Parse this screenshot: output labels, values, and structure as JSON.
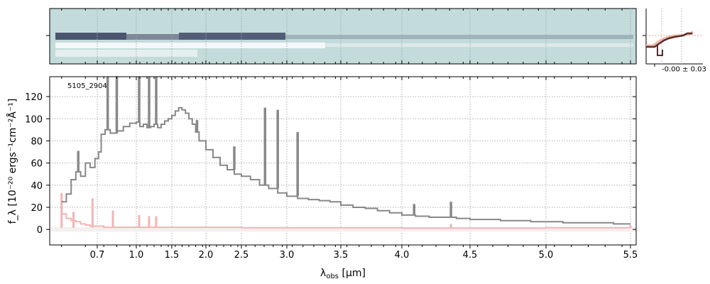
{
  "chart_data": {
    "type": "line",
    "object_label": "5105_2904",
    "xlabel_main": "λ",
    "xlabel_sub": "obs",
    "xlabel_unit": " [μm]",
    "ylabel_main": "f",
    "ylabel_sub": "λ",
    "ylabel_unit": "[10⁻²⁰ ergs⁻¹cm⁻²Å⁻¹]",
    "ylabel_text": "f_λ [10⁻²⁰ ergs⁻¹cm⁻²Å⁻¹]",
    "x_ticks": [
      0.7,
      1.0,
      1.5,
      2.0,
      2.5,
      3.0,
      3.5,
      4.0,
      4.5,
      5.0,
      5.5
    ],
    "x_tick_labels": [
      "0.7",
      "1.0",
      "1.5",
      "2.0",
      "2.5",
      "3.0",
      "3.5",
      "4.0",
      "4.5",
      "5.0",
      "5.5"
    ],
    "y_ticks": [
      0,
      20,
      40,
      60,
      80,
      100,
      120
    ],
    "y_tick_labels": [
      "0",
      "20",
      "40",
      "60",
      "80",
      "100",
      "120"
    ],
    "ylim": [
      -14,
      138
    ],
    "grid": true,
    "inset_label": "-0.00 ± 0.03",
    "series": [
      {
        "role": "flux",
        "color": "#888888",
        "x": [
          0.55,
          0.57,
          0.59,
          0.61,
          0.63,
          0.65,
          0.67,
          0.69,
          0.71,
          0.73,
          0.76,
          0.8,
          0.85,
          0.9,
          0.95,
          1.0,
          1.05,
          1.1,
          1.15,
          1.2,
          1.25,
          1.3,
          1.35,
          1.4,
          1.45,
          1.5,
          1.55,
          1.6,
          1.65,
          1.7,
          1.75,
          1.8,
          1.85,
          1.9,
          2.0,
          2.1,
          2.2,
          2.3,
          2.4,
          2.5,
          2.6,
          2.7,
          2.8,
          2.9,
          3.0,
          3.1,
          3.2,
          3.3,
          3.4,
          3.5,
          3.6,
          3.7,
          3.8,
          3.9,
          4.0,
          4.1,
          4.2,
          4.3,
          4.4,
          4.5,
          4.6,
          4.7,
          4.8,
          4.9,
          5.0,
          5.1,
          5.2,
          5.3,
          5.4,
          5.5
        ],
        "y": [
          25,
          32,
          45,
          52,
          48,
          60,
          56,
          64,
          70,
          86,
          90,
          87,
          89,
          93,
          96,
          97,
          93,
          95,
          92,
          93,
          95,
          92,
          95,
          98,
          100,
          103,
          107,
          110,
          108,
          105,
          100,
          95,
          88,
          80,
          72,
          65,
          58,
          54,
          50,
          48,
          45,
          40,
          37,
          33,
          30,
          28,
          27,
          26,
          25,
          22,
          20,
          19,
          17,
          15,
          13,
          12,
          11,
          11,
          10,
          9,
          9,
          8,
          8,
          7,
          7,
          6,
          6,
          6,
          5,
          5
        ]
      },
      {
        "role": "uncertainty",
        "color": "#f5b3b3",
        "x": [
          0.55,
          0.57,
          0.59,
          0.61,
          0.63,
          0.65,
          0.67,
          0.7,
          0.75,
          0.8,
          0.9,
          1.0,
          1.2,
          1.4,
          1.6,
          1.8,
          2.0,
          2.5,
          3.0,
          3.5,
          4.0,
          4.5,
          5.0,
          5.5
        ],
        "y": [
          14,
          10,
          8,
          7,
          5,
          4,
          3,
          3,
          2,
          2,
          2,
          2,
          2,
          2,
          2,
          2,
          2,
          1.5,
          1.5,
          1.5,
          1.2,
          1.2,
          1.5,
          2
        ]
      }
    ],
    "flux_spikes": [
      {
        "x": 0.62,
        "y": 71
      },
      {
        "x": 0.78,
        "y": 138
      },
      {
        "x": 0.85,
        "y": 138
      },
      {
        "x": 1.04,
        "y": 138
      },
      {
        "x": 1.18,
        "y": 138
      },
      {
        "x": 1.28,
        "y": 138
      },
      {
        "x": 1.87,
        "y": 99
      },
      {
        "x": 2.4,
        "y": 75
      },
      {
        "x": 2.76,
        "y": 110
      },
      {
        "x": 2.9,
        "y": 108
      },
      {
        "x": 3.1,
        "y": 88
      },
      {
        "x": 4.09,
        "y": 23
      },
      {
        "x": 4.36,
        "y": 25
      }
    ],
    "err_spikes": [
      {
        "x": 0.55,
        "y": 33
      },
      {
        "x": 0.6,
        "y": 16
      },
      {
        "x": 0.68,
        "y": 28
      },
      {
        "x": 0.82,
        "y": 17
      },
      {
        "x": 1.04,
        "y": 13
      },
      {
        "x": 1.18,
        "y": 12
      },
      {
        "x": 1.28,
        "y": 12
      },
      {
        "x": 4.36,
        "y": 5
      },
      {
        "x": 5.5,
        "y": 4
      }
    ]
  }
}
